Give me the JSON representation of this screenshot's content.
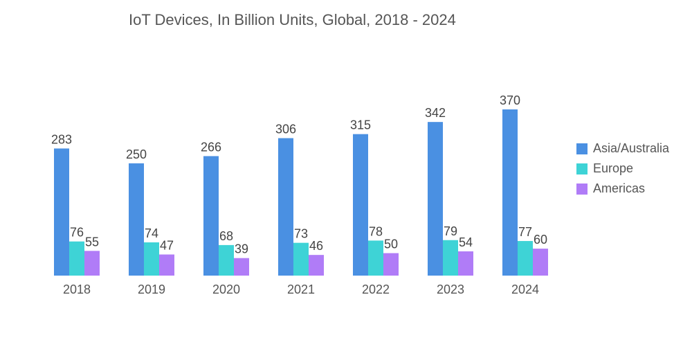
{
  "chart_data": {
    "type": "bar",
    "title": "IoT Devices, In Billion Units, Global, 2018 - 2024",
    "xlabel": "",
    "ylabel": "",
    "categories": [
      "2018",
      "2019",
      "2020",
      "2021",
      "2022",
      "2023",
      "2024"
    ],
    "series": [
      {
        "name": "Asia/Australia",
        "color": "#4a90e2",
        "values": [
          283,
          250,
          266,
          306,
          315,
          342,
          370
        ]
      },
      {
        "name": "Europe",
        "color": "#3ed3d6",
        "values": [
          76,
          74,
          68,
          73,
          78,
          79,
          77
        ]
      },
      {
        "name": "Americas",
        "color": "#b07cf7",
        "values": [
          55,
          47,
          39,
          46,
          50,
          54,
          60
        ]
      }
    ],
    "ylim": [
      0,
      370
    ],
    "grid": false,
    "legend_position": "right"
  }
}
